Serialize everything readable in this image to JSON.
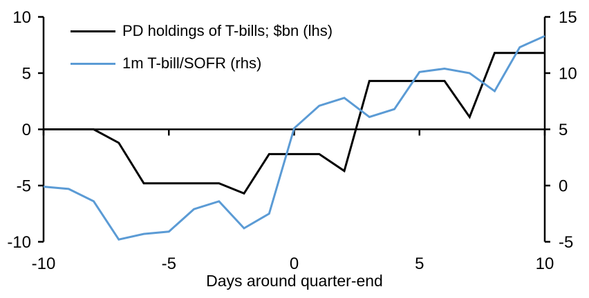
{
  "chart_data": {
    "type": "line",
    "title": "",
    "xlabel": "Days around quarter-end",
    "grid": false,
    "legend_position": "top-left",
    "x": [
      -10,
      -9,
      -8,
      -7,
      -6,
      -5,
      -4,
      -3,
      -2,
      -1,
      0,
      1,
      2,
      3,
      4,
      5,
      6,
      7,
      8,
      9,
      10
    ],
    "x_ticks": [
      -10,
      -5,
      0,
      5,
      10
    ],
    "x_range": [
      -10,
      10
    ],
    "left_axis": {
      "ticks": [
        10,
        5,
        0,
        -5,
        -10
      ],
      "range": [
        -10,
        10
      ]
    },
    "right_axis": {
      "ticks": [
        15,
        10,
        5,
        0,
        -5
      ],
      "range": [
        -5,
        15
      ]
    },
    "series": [
      {
        "name": "PD holdings of T-bills; $bn (lhs)",
        "axis": "left",
        "color": "#000000",
        "values": [
          0,
          0,
          0,
          -1.2,
          -4.8,
          -4.8,
          -4.8,
          -4.8,
          -5.7,
          -2.2,
          -2.2,
          -2.2,
          -3.7,
          4.3,
          4.3,
          4.3,
          4.3,
          1.1,
          6.8,
          6.8,
          6.8
        ]
      },
      {
        "name": "1m T-bill/SOFR (rhs)",
        "axis": "right",
        "color": "#5B9BD5",
        "values": [
          -0.1,
          -0.3,
          -1.4,
          -4.8,
          -4.3,
          -4.1,
          -2.1,
          -1.4,
          -3.8,
          -2.5,
          5.1,
          7.1,
          7.8,
          6.1,
          6.8,
          10.1,
          10.4,
          10.0,
          8.4,
          12.3,
          13.3
        ]
      }
    ],
    "colors": {
      "axis": "#000000",
      "background": "#FFFFFF"
    }
  }
}
